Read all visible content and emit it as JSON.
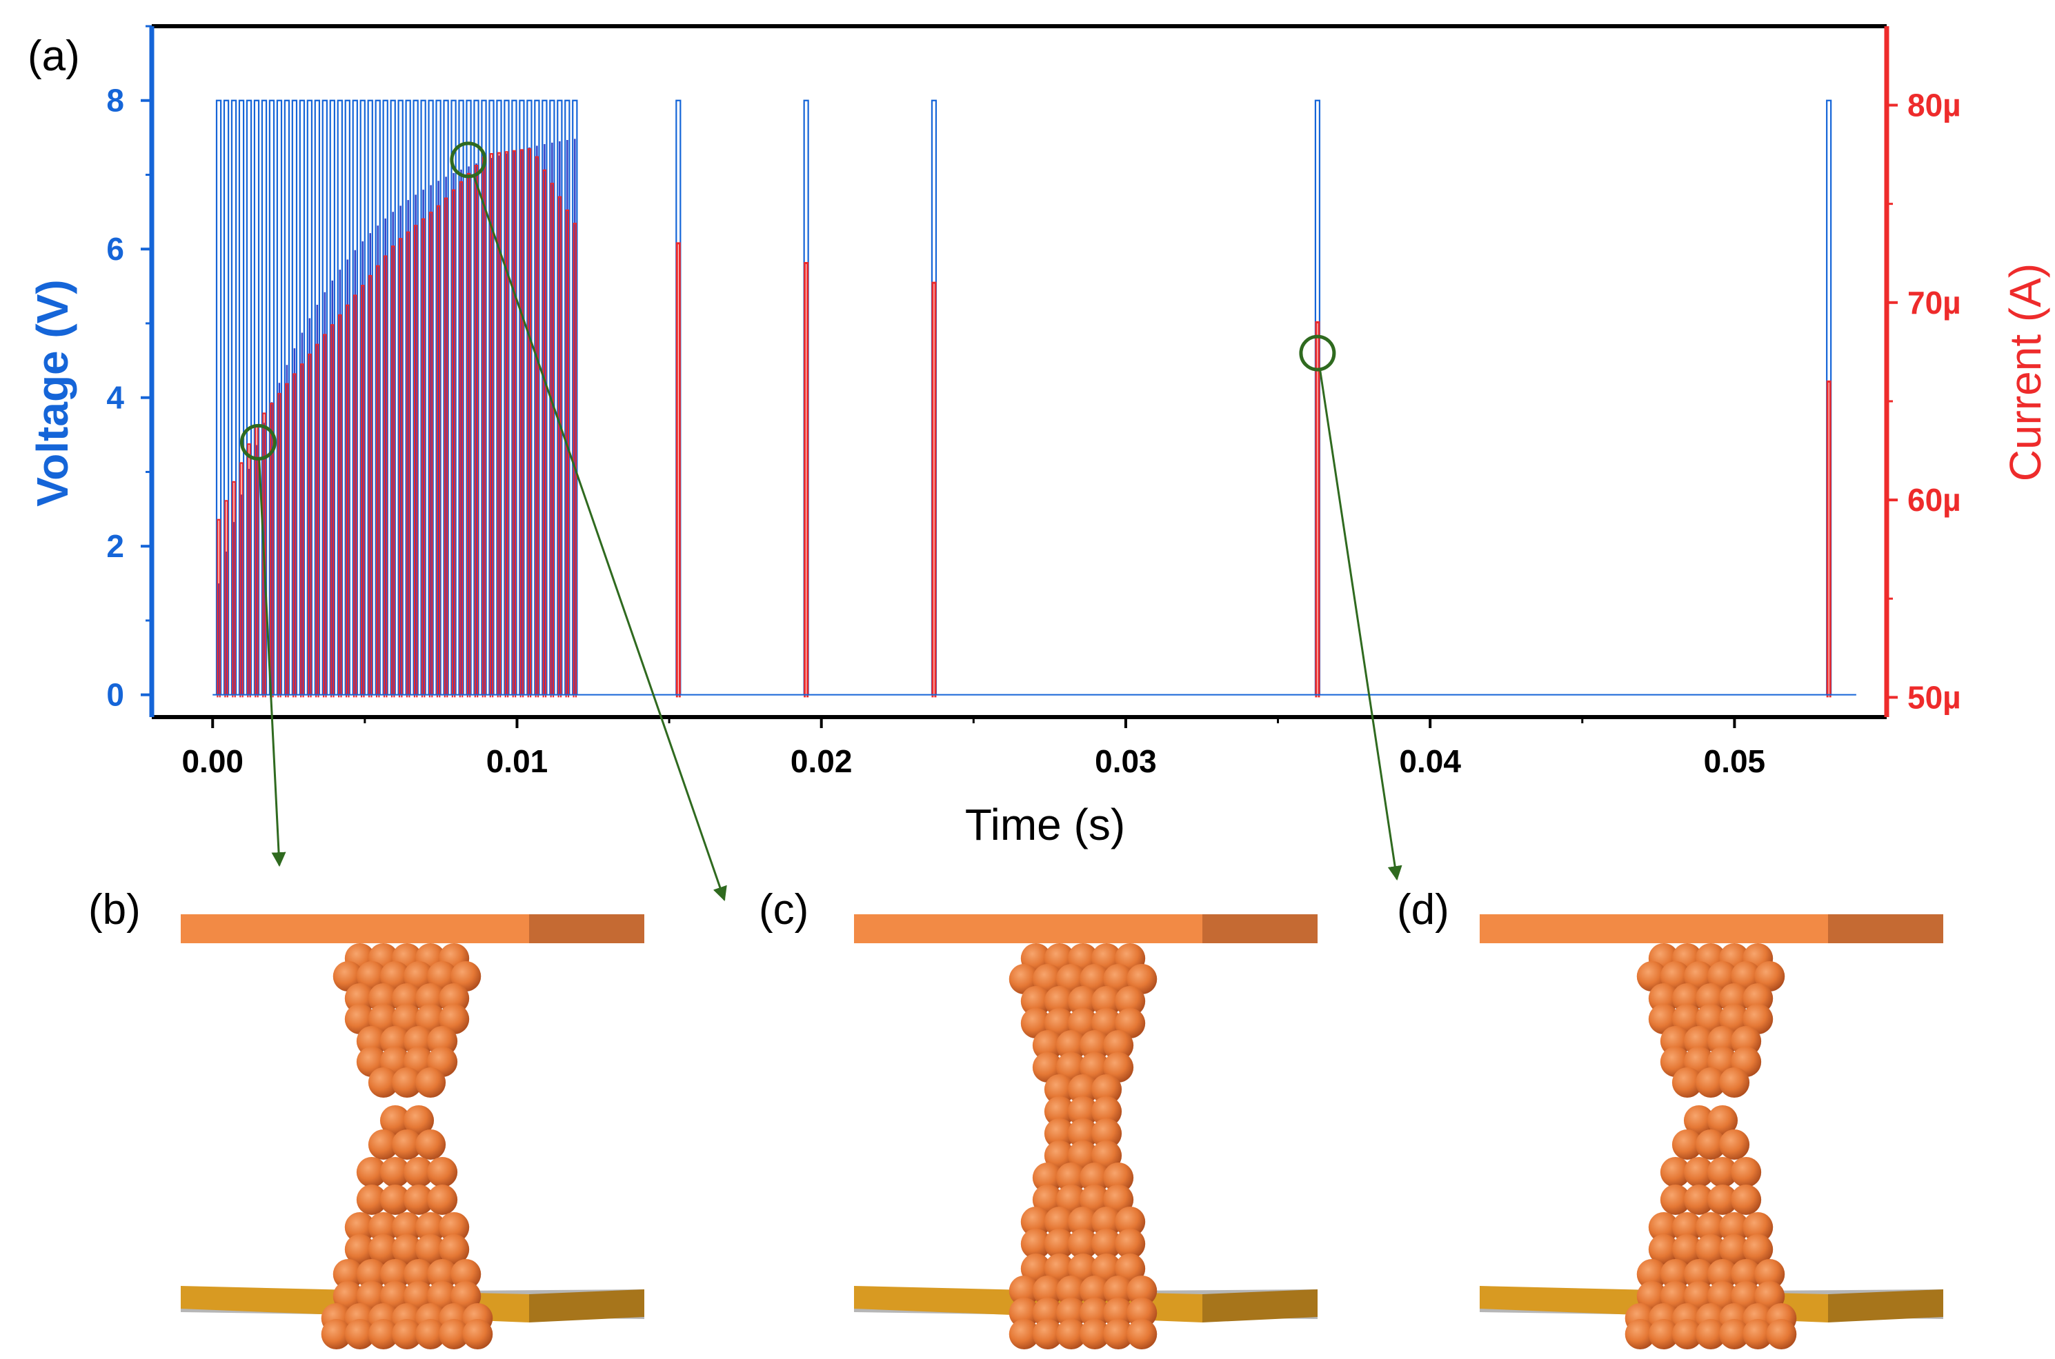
{
  "figure": {
    "panel_labels": {
      "a": "(a)",
      "b": "(b)",
      "c": "(c)",
      "d": "(d)"
    }
  },
  "colors": {
    "voltage": "#1565d8",
    "current": "#ee2b2b",
    "marker": "#2f6a1f",
    "electrode_top": "#f28a45",
    "electrode_top_dark": "#c56a33",
    "electrode_bottom": "#d89a22",
    "electrode_bottom_dark": "#a7751b",
    "atom": "#e57835",
    "atom_dark": "#b4521f"
  },
  "chart_data": {
    "type": "line",
    "xlabel": "Time (s)",
    "ylabel_left": "Voltage (V)",
    "ylabel_right": "Current (A)",
    "xlim": [
      -0.002,
      0.055
    ],
    "ylim_left": [
      -0.3,
      9
    ],
    "ylim_right": [
      49,
      84
    ],
    "x_ticks": [
      0.0,
      0.01,
      0.02,
      0.03,
      0.04,
      0.05
    ],
    "x_tick_labels": [
      "0.00",
      "0.01",
      "0.02",
      "0.03",
      "0.04",
      "0.05"
    ],
    "y_left_ticks": [
      0,
      2,
      4,
      6,
      8
    ],
    "y_left_tick_labels": [
      "0",
      "2",
      "4",
      "6",
      "8"
    ],
    "y_right_ticks": [
      50,
      60,
      70,
      80
    ],
    "y_right_tick_labels": [
      "50µ",
      "60µ",
      "70µ",
      "80µ"
    ],
    "series": [
      {
        "name": "Voltage",
        "axis": "left",
        "pulse_train": {
          "start": 0.0002,
          "end": 0.0119,
          "count": 48,
          "amplitude": 8
        },
        "isolated_pulses": [
          {
            "t": 0.0153,
            "v": 8
          },
          {
            "t": 0.0195,
            "v": 8
          },
          {
            "t": 0.0237,
            "v": 8
          },
          {
            "t": 0.0363,
            "v": 8
          },
          {
            "t": 0.0531,
            "v": 8
          }
        ],
        "baseline": 0,
        "x_end": 0.054
      },
      {
        "name": "Current",
        "axis": "right",
        "pulse_train_peaks": [
          {
            "t": 0.0002,
            "i": 59
          },
          {
            "t": 0.0015,
            "i": 64
          },
          {
            "t": 0.003,
            "i": 67
          },
          {
            "t": 0.0045,
            "i": 70
          },
          {
            "t": 0.006,
            "i": 73
          },
          {
            "t": 0.0075,
            "i": 75
          },
          {
            "t": 0.009,
            "i": 77.5
          },
          {
            "t": 0.0105,
            "i": 77.8
          },
          {
            "t": 0.0119,
            "i": 74
          }
        ],
        "isolated_pulses": [
          {
            "t": 0.0153,
            "i": 73
          },
          {
            "t": 0.0195,
            "i": 72
          },
          {
            "t": 0.0237,
            "i": 71
          },
          {
            "t": 0.0363,
            "i": 69
          },
          {
            "t": 0.0531,
            "i": 66
          }
        ],
        "baseline": 50
      }
    ],
    "markers": [
      {
        "id": "b",
        "t": 0.0015,
        "v": 3.4
      },
      {
        "id": "c",
        "t": 0.0084,
        "v": 7.2
      },
      {
        "id": "d",
        "t": 0.0363,
        "v": 4.6
      }
    ]
  }
}
